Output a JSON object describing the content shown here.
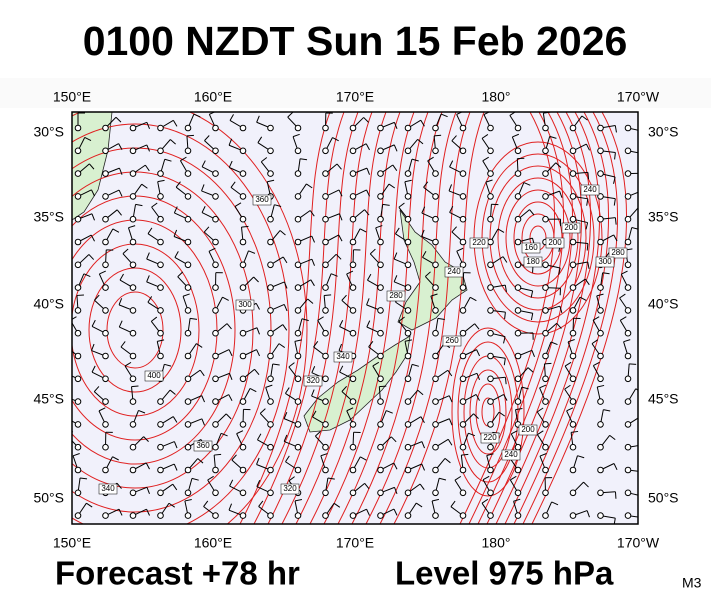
{
  "header": {
    "title": "0100 NZDT Sun 15 Feb 2026"
  },
  "axes": {
    "top": [
      "150°E",
      "160°E",
      "170°E",
      "180°",
      "170°W"
    ],
    "bottom": [
      "150°E",
      "160°E",
      "170°E",
      "180°",
      "170°W"
    ],
    "left": [
      "30°S",
      "35°S",
      "40°S",
      "45°S",
      "50°S"
    ],
    "right": [
      "30°S",
      "35°S",
      "40°S",
      "45°S",
      "50°S"
    ]
  },
  "contour_labels": [
    "360",
    "400",
    "360",
    "340",
    "320",
    "320",
    "340",
    "280",
    "260",
    "240",
    "220",
    "200",
    "180",
    "160",
    "240",
    "280",
    "300",
    "220",
    "240",
    "200",
    "200",
    "300"
  ],
  "footer": {
    "forecast": "Forecast +78 hr",
    "level": "Level 975 hPa",
    "code": "M3"
  }
}
